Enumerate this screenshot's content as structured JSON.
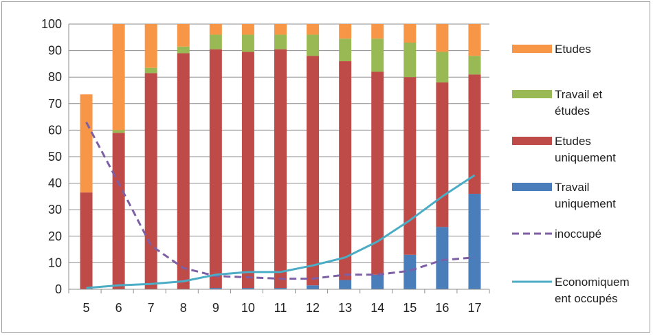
{
  "chart_data": {
    "type": "bar",
    "stacked": true,
    "categories": [
      "5",
      "6",
      "7",
      "8",
      "9",
      "10",
      "11",
      "12",
      "13",
      "14",
      "15",
      "16",
      "17"
    ],
    "ylim": [
      0,
      100
    ],
    "yticks": [
      "0",
      "10",
      "20",
      "30",
      "40",
      "50",
      "60",
      "70",
      "80",
      "90",
      "100"
    ],
    "grid": true,
    "legend": "right",
    "series": [
      {
        "name": "Travail uniquement",
        "kind": "bar",
        "color": "#4a7ebb",
        "values": [
          0,
          0,
          0,
          0,
          0.5,
          0.5,
          0.5,
          1.5,
          3.5,
          5.5,
          13,
          23.5,
          36
        ]
      },
      {
        "name": "Etudes uniquement",
        "kind": "bar",
        "color": "#be4b48",
        "values": [
          36.5,
          59,
          81.5,
          89,
          90,
          89,
          90,
          86.5,
          82.5,
          76.5,
          67,
          54.5,
          45
        ]
      },
      {
        "name": "Travail et études",
        "kind": "bar",
        "color": "#98b954",
        "values": [
          0,
          1,
          2,
          2.5,
          5.5,
          6.5,
          5.5,
          8,
          8.5,
          12.5,
          13,
          11.5,
          7
        ]
      },
      {
        "name": "Etudes",
        "kind": "bar",
        "color": "#f79646",
        "values": [
          37,
          40,
          16.5,
          8.5,
          4,
          4,
          4,
          4,
          5.5,
          5.5,
          7,
          10.5,
          12
        ]
      },
      {
        "name": "inoccupé",
        "kind": "line",
        "style": "dashed",
        "color": "#7c5fa5",
        "values": [
          63,
          40,
          16.5,
          8,
          5,
          4.5,
          4,
          4,
          5.5,
          5.5,
          7,
          11,
          12
        ]
      },
      {
        "name": "Economiquement occupés",
        "kind": "line",
        "style": "solid",
        "color": "#4bacc6",
        "values": [
          0.5,
          1.5,
          2,
          3,
          5.5,
          6.5,
          6.5,
          9,
          12,
          18,
          26,
          35,
          43
        ]
      }
    ],
    "legend_entries": [
      {
        "lines": [
          "Etudes"
        ],
        "color": "#f79646",
        "marker": "box"
      },
      {
        "lines": [
          "Travail et",
          "études"
        ],
        "color": "#98b954",
        "marker": "box"
      },
      {
        "lines": [
          "Etudes",
          "uniquement"
        ],
        "color": "#be4b48",
        "marker": "box"
      },
      {
        "lines": [
          "Travail",
          "uniquement"
        ],
        "color": "#4a7ebb",
        "marker": "box"
      },
      {
        "lines": [
          "inoccupé"
        ],
        "color": "#7c5fa5",
        "marker": "dash"
      },
      {
        "lines": [
          "Economiquem",
          "ent occupés"
        ],
        "color": "#4bacc6",
        "marker": "line"
      }
    ]
  }
}
